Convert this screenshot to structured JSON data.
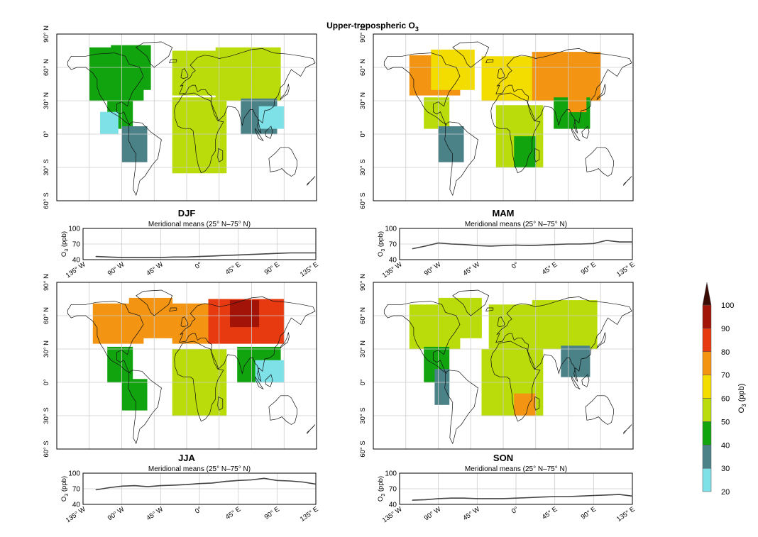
{
  "title": "Upper-tropospheric O",
  "title_sub": "3",
  "chart_data": {
    "type": "heatmap",
    "description_units": "ppb",
    "colorbar": {
      "label": "O3 (ppb)",
      "label_main": "O",
      "label_sub": "3",
      "label_unit": " (ppb)",
      "ticks": [
        20,
        30,
        40,
        50,
        60,
        70,
        80,
        90,
        100
      ],
      "bins": [
        {
          "from": 20,
          "to": 30,
          "color": "#7fe1e8"
        },
        {
          "from": 30,
          "to": 40,
          "color": "#4a8288"
        },
        {
          "from": 40,
          "to": 50,
          "color": "#11a40e"
        },
        {
          "from": 50,
          "to": 60,
          "color": "#b9dc0a"
        },
        {
          "from": 60,
          "to": 70,
          "color": "#f3dc00"
        },
        {
          "from": 70,
          "to": 80,
          "color": "#f39412"
        },
        {
          "from": 80,
          "to": 90,
          "color": "#e83a10"
        },
        {
          "from": 90,
          "to": 100,
          "color": "#a21308"
        },
        {
          "from": 100,
          "to": 110,
          "color": "#3a0a04"
        }
      ],
      "extend": "max"
    },
    "map_axes": {
      "lat_ticks": [
        "60° S",
        "30° S",
        "0°",
        "30° N",
        "60° N",
        "90° N"
      ],
      "lat_values": [
        -60,
        -30,
        0,
        30,
        60,
        90
      ],
      "lon_grid": [
        -135,
        -90,
        -45,
        0,
        45,
        90,
        135
      ],
      "lon_range": [
        -180,
        180
      ],
      "lat_range": [
        -60,
        90
      ]
    },
    "line_axes": {
      "title": "Meridional means (25° N–75° N)",
      "ylabel": "O3 (ppb)",
      "ylabel_main": "O",
      "ylabel_sub": "3",
      "ylabel_unit": " (ppb)",
      "yticks": [
        40,
        70,
        100
      ],
      "ylim": [
        40,
        100
      ],
      "xticks": [
        "135° W",
        "90° W",
        "45° W",
        "0°",
        "45° E",
        "90° E",
        "135° E"
      ],
      "xtick_values": [
        -135,
        -90,
        -45,
        0,
        45,
        90,
        135
      ],
      "xlim": [
        -135,
        135
      ]
    },
    "panels": [
      {
        "season": "DJF",
        "regions": [
          {
            "lon": [
              -135,
              -60
            ],
            "lat": [
              30,
              75
            ],
            "value": 47
          },
          {
            "lon": [
              -105,
              -50
            ],
            "lat": [
              40,
              80
            ],
            "value": 45
          },
          {
            "lon": [
              -20,
              40
            ],
            "lat": [
              35,
              72
            ],
            "value": 52
          },
          {
            "lon": [
              40,
              130
            ],
            "lat": [
              30,
              75
            ],
            "value": 55
          },
          {
            "lon": [
              -110,
              -75
            ],
            "lat": [
              5,
              30
            ],
            "value": 47
          },
          {
            "lon": [
              -90,
              -55
            ],
            "lat": [
              -25,
              5
            ],
            "value": 35
          },
          {
            "lon": [
              -120,
              -95
            ],
            "lat": [
              0,
              20
            ],
            "value": 25
          },
          {
            "lon": [
              -20,
              55
            ],
            "lat": [
              -35,
              30
            ],
            "value": 50
          },
          {
            "lon": [
              15,
              45
            ],
            "lat": [
              -30,
              0
            ],
            "value": 58
          },
          {
            "lon": [
              75,
              125
            ],
            "lat": [
              0,
              30
            ],
            "value": 35
          },
          {
            "lon": [
              100,
              135
            ],
            "lat": [
              5,
              25
            ],
            "value": 25
          }
        ],
        "meridional_mean": {
          "x": [
            -120,
            -105,
            -90,
            -75,
            -60,
            -45,
            -30,
            -15,
            0,
            15,
            30,
            45,
            60,
            75,
            90,
            105,
            120,
            135
          ],
          "y": [
            46,
            45,
            44,
            44,
            44,
            44,
            45,
            45,
            46,
            47,
            48,
            49,
            50,
            51,
            52,
            53,
            53,
            53
          ]
        }
      },
      {
        "season": "MAM",
        "regions": [
          {
            "lon": [
              -130,
              -60
            ],
            "lat": [
              35,
              70
            ],
            "value": 72
          },
          {
            "lon": [
              -100,
              -40
            ],
            "lat": [
              40,
              75
            ],
            "value": 66
          },
          {
            "lon": [
              -30,
              40
            ],
            "lat": [
              30,
              70
            ],
            "value": 67
          },
          {
            "lon": [
              40,
              135
            ],
            "lat": [
              30,
              72
            ],
            "value": 73
          },
          {
            "lon": [
              60,
              110
            ],
            "lat": [
              45,
              70
            ],
            "value": 76
          },
          {
            "lon": [
              -110,
              -75
            ],
            "lat": [
              5,
              30
            ],
            "value": 55
          },
          {
            "lon": [
              -90,
              -55
            ],
            "lat": [
              -25,
              5
            ],
            "value": 35
          },
          {
            "lon": [
              -10,
              55
            ],
            "lat": [
              -30,
              25
            ],
            "value": 56
          },
          {
            "lon": [
              15,
              45
            ],
            "lat": [
              -30,
              -5
            ],
            "value": 48
          },
          {
            "lon": [
              70,
              120
            ],
            "lat": [
              5,
              30
            ],
            "value": 46
          },
          {
            "lon": [
              90,
              115
            ],
            "lat": [
              20,
              40
            ],
            "value": 78
          }
        ],
        "meridional_mean": {
          "x": [
            -120,
            -105,
            -90,
            -75,
            -60,
            -45,
            -30,
            -15,
            0,
            15,
            30,
            45,
            60,
            75,
            90,
            105,
            120,
            135
          ],
          "y": [
            61,
            66,
            72,
            70,
            69,
            67,
            66,
            67,
            68,
            67,
            68,
            69,
            70,
            70,
            71,
            77,
            74,
            74
          ]
        }
      },
      {
        "season": "JJA",
        "regions": [
          {
            "lon": [
              -130,
              -60
            ],
            "lat": [
              35,
              70
            ],
            "value": 75
          },
          {
            "lon": [
              -80,
              -20
            ],
            "lat": [
              40,
              75
            ],
            "value": 73
          },
          {
            "lon": [
              -20,
              30
            ],
            "lat": [
              35,
              70
            ],
            "value": 72
          },
          {
            "lon": [
              30,
              135
            ],
            "lat": [
              35,
              75
            ],
            "value": 85
          },
          {
            "lon": [
              60,
              100
            ],
            "lat": [
              50,
              72
            ],
            "value": 92
          },
          {
            "lon": [
              -110,
              -75
            ],
            "lat": [
              0,
              30
            ],
            "value": 45
          },
          {
            "lon": [
              -90,
              -55
            ],
            "lat": [
              -25,
              0
            ],
            "value": 47
          },
          {
            "lon": [
              -20,
              55
            ],
            "lat": [
              -30,
              30
            ],
            "value": 56
          },
          {
            "lon": [
              70,
              130
            ],
            "lat": [
              0,
              30
            ],
            "value": 47
          },
          {
            "lon": [
              95,
              135
            ],
            "lat": [
              0,
              20
            ],
            "value": 25
          }
        ],
        "meridional_mean": {
          "x": [
            -120,
            -105,
            -90,
            -75,
            -60,
            -45,
            -30,
            -15,
            0,
            15,
            30,
            45,
            60,
            75,
            90,
            105,
            120,
            135
          ],
          "y": [
            68,
            72,
            75,
            76,
            74,
            76,
            77,
            78,
            80,
            81,
            84,
            86,
            87,
            90,
            86,
            85,
            83,
            79
          ]
        }
      },
      {
        "season": "SON",
        "regions": [
          {
            "lon": [
              -130,
              -60
            ],
            "lat": [
              30,
              70
            ],
            "value": 50
          },
          {
            "lon": [
              -90,
              -30
            ],
            "lat": [
              40,
              75
            ],
            "value": 55
          },
          {
            "lon": [
              -20,
              40
            ],
            "lat": [
              30,
              70
            ],
            "value": 53
          },
          {
            "lon": [
              40,
              130
            ],
            "lat": [
              30,
              72
            ],
            "value": 57
          },
          {
            "lon": [
              -110,
              -75
            ],
            "lat": [
              0,
              30
            ],
            "value": 46
          },
          {
            "lon": [
              -95,
              -75
            ],
            "lat": [
              -20,
              10
            ],
            "value": 35
          },
          {
            "lon": [
              -30,
              55
            ],
            "lat": [
              -30,
              30
            ],
            "value": 50
          },
          {
            "lon": [
              15,
              45
            ],
            "lat": [
              -30,
              -10
            ],
            "value": 72
          },
          {
            "lon": [
              80,
              120
            ],
            "lat": [
              5,
              30
            ],
            "value": 36
          }
        ],
        "meridional_mean": {
          "x": [
            -120,
            -105,
            -90,
            -75,
            -60,
            -45,
            -30,
            -15,
            0,
            15,
            30,
            45,
            60,
            75,
            90,
            105,
            120,
            135
          ],
          "y": [
            48,
            49,
            51,
            52,
            52,
            51,
            51,
            51,
            52,
            53,
            54,
            55,
            55,
            56,
            57,
            58,
            59,
            56
          ]
        }
      }
    ]
  }
}
